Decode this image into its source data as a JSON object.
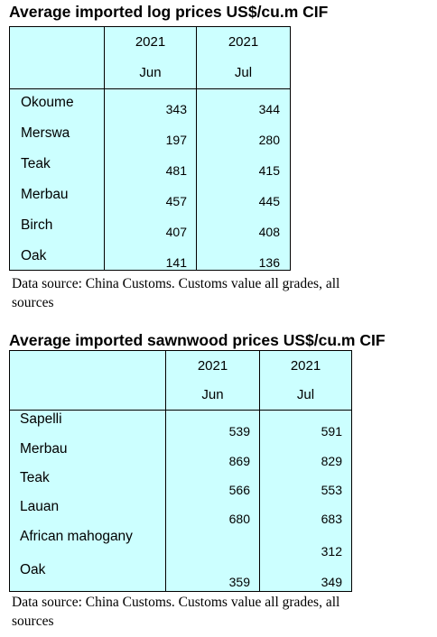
{
  "log_table": {
    "title": "Average imported log prices US$/cu.m CIF",
    "year_1": "2021",
    "year_2": "2021",
    "month_1": "Jun",
    "month_2": "Jul",
    "rows": [
      {
        "name": "Okoume",
        "jun": "343",
        "jul": "344"
      },
      {
        "name": "Merswa",
        "jun": "197",
        "jul": "280"
      },
      {
        "name": "Teak",
        "jun": "481",
        "jul": "415"
      },
      {
        "name": "Merbau",
        "jun": "457",
        "jul": "445"
      },
      {
        "name": "Birch",
        "jun": "407",
        "jul": "408"
      },
      {
        "name": "Oak",
        "jun": "141",
        "jul": "136"
      }
    ],
    "source_line1": "Data source: China Customs. Customs value all grades, all",
    "source_line2": "sources"
  },
  "sawnwood_table": {
    "title": "Average imported sawnwood prices US$/cu.m CIF",
    "year_1": "2021",
    "year_2": "2021",
    "month_1": "Jun",
    "month_2": "Jul",
    "rows": [
      {
        "name": "Sapelli",
        "jun": "539",
        "jul": "591"
      },
      {
        "name": "Merbau",
        "jun": "869",
        "jul": "829"
      },
      {
        "name": "Teak",
        "jun": "566",
        "jul": "553"
      },
      {
        "name": "Lauan",
        "jun": "680",
        "jul": "683"
      },
      {
        "name": "African mahogany",
        "jun": "",
        "jul": "312"
      },
      {
        "name": "Oak",
        "jun": "359",
        "jul": "349"
      }
    ],
    "source_line1": "Data source: China Customs. Customs value all grades, all",
    "source_line2": "sources"
  }
}
